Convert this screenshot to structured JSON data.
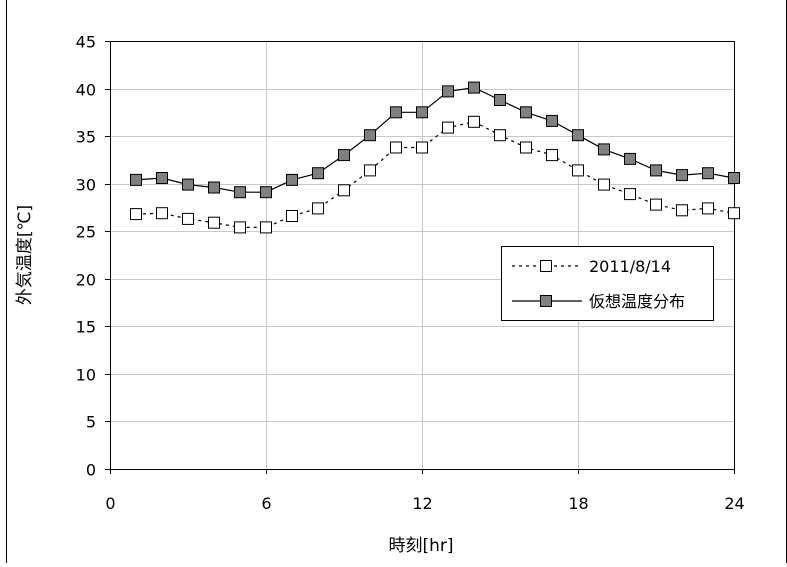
{
  "chart_data": {
    "type": "line",
    "xlabel": "時刻[hr]",
    "ylabel": "外気温度[℃]",
    "xlim": [
      0,
      24
    ],
    "ylim": [
      0,
      45
    ],
    "x_ticks": [
      0,
      6,
      12,
      18,
      24
    ],
    "y_ticks": [
      0,
      5,
      10,
      15,
      20,
      25,
      30,
      35,
      40,
      45
    ],
    "grid": true,
    "legend_position": "right",
    "x": [
      1,
      2,
      3,
      4,
      5,
      6,
      7,
      8,
      9,
      10,
      11,
      12,
      13,
      14,
      15,
      16,
      17,
      18,
      19,
      20,
      21,
      22,
      23,
      24
    ],
    "series": [
      {
        "name": "2011/8/14",
        "style": "dotted-line-open-square",
        "color": "#000000",
        "values": [
          26.8,
          26.9,
          26.3,
          25.9,
          25.4,
          25.4,
          26.6,
          27.4,
          29.3,
          31.4,
          33.8,
          33.8,
          35.9,
          36.5,
          35.1,
          33.8,
          33.0,
          31.4,
          29.9,
          28.9,
          27.8,
          27.2,
          27.4,
          26.9
        ]
      },
      {
        "name": "仮想温度分布",
        "style": "solid-line-filled-square",
        "color": "#808080",
        "values": [
          30.4,
          30.6,
          29.9,
          29.6,
          29.1,
          29.1,
          30.4,
          31.1,
          33.0,
          35.1,
          37.5,
          37.5,
          39.7,
          40.1,
          38.8,
          37.5,
          36.6,
          35.1,
          33.6,
          32.6,
          31.4,
          30.9,
          31.1,
          30.6
        ]
      }
    ]
  }
}
